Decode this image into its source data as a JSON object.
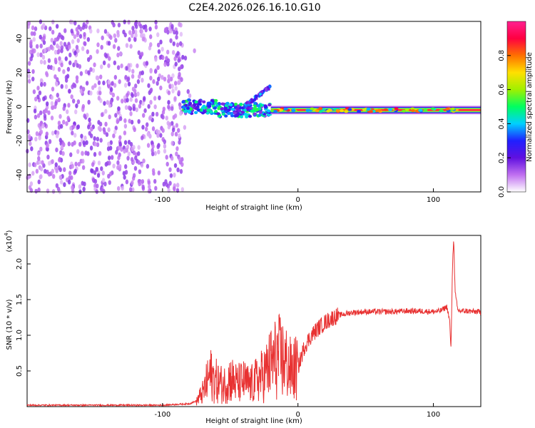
{
  "title": "C2E4.2026.026.16.10.G10",
  "colors": {
    "snr_line": "#e83232",
    "frame": "#000000"
  },
  "chart_data": [
    {
      "type": "heatmap",
      "name": "spectrogram",
      "xlabel": "Height of straight line (km)",
      "ylabel": "Frequency (Hz)",
      "xlim": [
        -200,
        135
      ],
      "ylim": [
        -50,
        50
      ],
      "x_ticks": [
        "-100",
        "0",
        "100"
      ],
      "y_ticks": [
        "-40",
        "-20",
        "0",
        "20",
        "40"
      ],
      "colorbar": {
        "label": "Normalized spectral amplitude",
        "range": [
          0,
          1
        ],
        "ticks": [
          "0.0",
          "0.2",
          "0.4",
          "0.6",
          "0.8"
        ],
        "colors": [
          "#ffffff",
          "#c070f0",
          "#6010e0",
          "#2020ff",
          "#00d0ff",
          "#00ff60",
          "#a0f000",
          "#ffe000",
          "#ff7000",
          "#ff0040",
          "#ff2090"
        ]
      },
      "features": [
        {
          "x_range": [
            -200,
            -85
          ],
          "freq_range": [
            -50,
            50
          ],
          "amplitude": 0.15
        },
        {
          "x_range": [
            -85,
            -20
          ],
          "freq_center": 0,
          "freq_spread": 8,
          "amplitude": 0.3
        },
        {
          "x_range": [
            -40,
            -20
          ],
          "freq_from": 0,
          "freq_to": 12,
          "amplitude": 0.25
        },
        {
          "x_range": [
            -20,
            135
          ],
          "freq_center": -2,
          "freq_spread": 1.5,
          "amplitude": 0.95
        }
      ]
    },
    {
      "type": "line",
      "name": "snr",
      "xlabel": "Height of straight line (km)",
      "ylabel": "SNR (10 * v/v)",
      "y_scale_note": "(x10",
      "y_scale_exp": "4",
      "xlim": [
        -200,
        135
      ],
      "ylim": [
        0,
        2.4
      ],
      "x_ticks": [
        "-100",
        "0",
        "100"
      ],
      "y_ticks": [
        "0.5",
        "1.0",
        "1.5",
        "2.0"
      ],
      "series": [
        {
          "x": [
            -200,
            -150,
            -100,
            -80,
            -75,
            -70,
            -65,
            -60,
            -55,
            -50,
            -45,
            -40,
            -35,
            -30,
            -25,
            -20,
            -15,
            -10,
            -5,
            0,
            5,
            10,
            15,
            20,
            25,
            30,
            35,
            40,
            50,
            60,
            70,
            80,
            90,
            100,
            105,
            110,
            112,
            113,
            114,
            115,
            116,
            118,
            120,
            125,
            130,
            135
          ],
          "y": [
            0.02,
            0.02,
            0.02,
            0.04,
            0.08,
            0.2,
            0.45,
            0.35,
            0.3,
            0.4,
            0.32,
            0.35,
            0.3,
            0.38,
            0.45,
            0.6,
            0.7,
            0.65,
            0.5,
            0.55,
            0.85,
            1.0,
            1.1,
            1.18,
            1.24,
            1.28,
            1.3,
            1.32,
            1.33,
            1.33,
            1.33,
            1.34,
            1.34,
            1.33,
            1.34,
            1.4,
            1.2,
            0.8,
            1.9,
            2.4,
            1.6,
            1.35,
            1.34,
            1.34,
            1.33,
            1.33
          ]
        }
      ]
    }
  ]
}
